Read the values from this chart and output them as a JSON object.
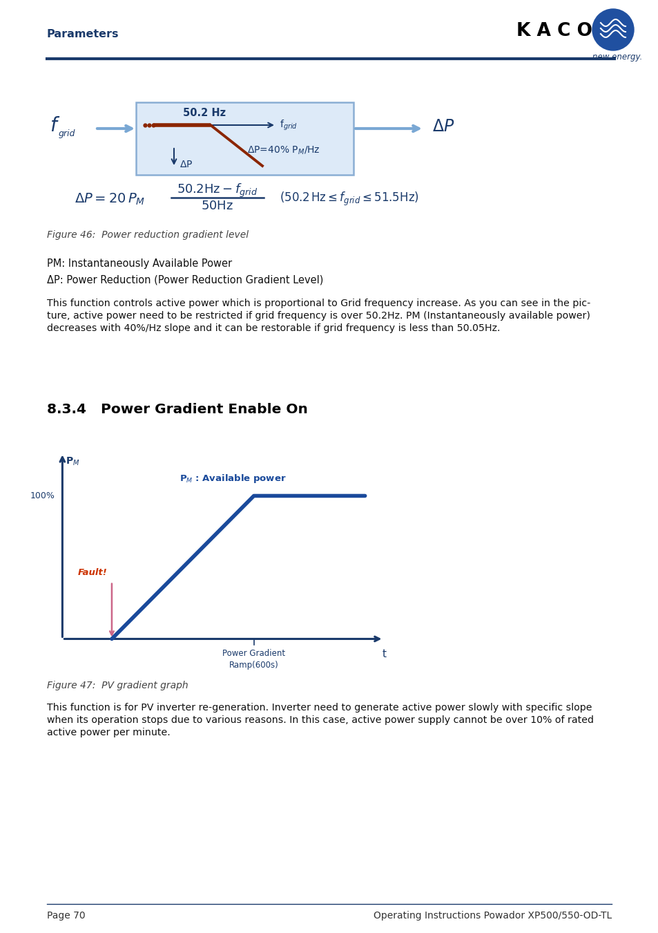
{
  "page_title": "Parameters",
  "kaco_text": "K A C O",
  "new_energy_text": "new energy.",
  "section_heading": "8.3.4   Power Gradient Enable On",
  "fig46_caption": "Figure 46:  Power reduction gradient level",
  "fig47_caption": "Figure 47:  PV gradient graph",
  "pm_desc": "PM: Instantaneously Available Power",
  "dp_desc": "ΔP: Power Reduction (Power Reduction Gradient Level)",
  "body_text1_line1": "This function controls active power which is proportional to Grid frequency increase. As you can see in the pic-",
  "body_text1_line2": "ture, active power need to be restricted if grid frequency is over 50.2Hz. PM (Instantaneously available power)",
  "body_text1_line3": "decreases with 40%/Hz slope and it can be restorable if grid frequency is less than 50.05Hz.",
  "body_text2_line1": "This function is for PV inverter re-generation. Inverter need to generate active power slowly with specific slope",
  "body_text2_line2": "when its operation stops due to various reasons. In this case, active power supply cannot be over 10% of rated",
  "body_text2_line3": "active power per minute.",
  "footer_left": "Page 70",
  "footer_right": "Operating Instructions Powador XP500/550-OD-TL",
  "dark_blue": "#1a3a6b",
  "mid_blue": "#2050a0",
  "light_blue": "#7aa8d4",
  "box_fill": "#ddeaf8",
  "box_edge": "#8aaed4",
  "red_brown": "#8b2500",
  "fault_color": "#cc3300",
  "pink_arrow": "#cc6688",
  "graph_blue": "#1a4a9b"
}
